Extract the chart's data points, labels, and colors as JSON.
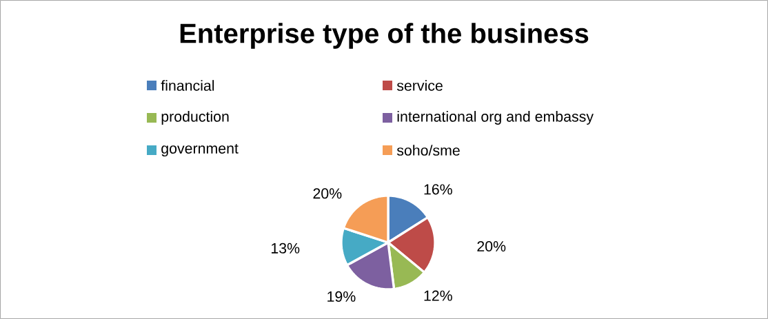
{
  "chart_data": {
    "type": "pie",
    "title": "Enterprise type of the business",
    "categories": [
      "financial",
      "service",
      "production",
      "international org and embassy",
      "government",
      "soho/sme"
    ],
    "values": [
      16,
      20,
      12,
      19,
      13,
      20
    ],
    "value_labels": [
      "16%",
      "20%",
      "12%",
      "19%",
      "13%",
      "20%"
    ],
    "colors": [
      "#4a7ebb",
      "#be4b48",
      "#98b954",
      "#7d60a0",
      "#46aac5",
      "#f59d56"
    ],
    "legend": "top"
  }
}
